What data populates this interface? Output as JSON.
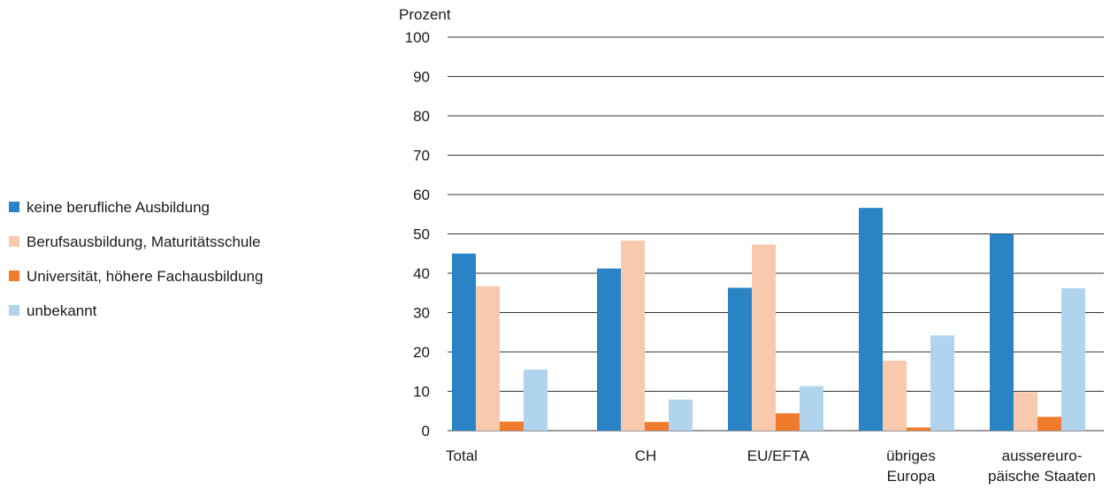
{
  "chart_data": {
    "type": "bar",
    "ylabel": "Prozent",
    "ylim": [
      0,
      100
    ],
    "yticks": [
      0,
      10,
      20,
      30,
      40,
      50,
      60,
      70,
      80,
      90,
      100
    ],
    "grid": true,
    "legend_position": "left",
    "categories": [
      [
        "Total"
      ],
      [
        "CH"
      ],
      [
        "EU/EFTA"
      ],
      [
        "übriges",
        "Europa"
      ],
      [
        "aussereuro-",
        "päische Staaten"
      ]
    ],
    "series": [
      {
        "name": "keine berufliche Ausbildung",
        "color": "#2a83c4",
        "values": [
          45,
          41.2,
          36.3,
          56.6,
          50
        ]
      },
      {
        "name": "Berufsausbildung, Maturitätsschule",
        "color": "#f9c9ae",
        "values": [
          36.7,
          48.3,
          47.3,
          17.8,
          9.8
        ]
      },
      {
        "name": "Universität, höhere Fachausbildung",
        "color": "#f07b2c",
        "values": [
          2.3,
          2.2,
          4.4,
          0.8,
          3.5
        ]
      },
      {
        "name": "unbekannt",
        "color": "#b1d4ee",
        "values": [
          15.5,
          7.9,
          11.3,
          24.2,
          36.2
        ]
      }
    ]
  }
}
